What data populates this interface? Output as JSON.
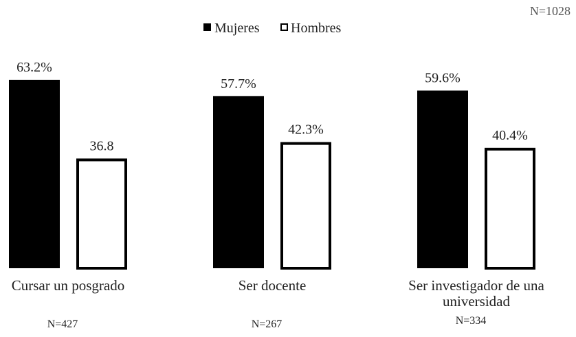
{
  "chart_data": {
    "type": "bar",
    "total_label": "N=1028",
    "categories": [
      "Cursar un posgrado",
      "Ser docente",
      "Ser investigador de una universidad"
    ],
    "category_lines": [
      [
        "Cursar un posgrado"
      ],
      [
        "Ser docente"
      ],
      [
        "Ser investigador de una",
        "universidad"
      ]
    ],
    "sample_sizes": [
      "N=427",
      "N=267",
      "N=334"
    ],
    "series": [
      {
        "name": "Mujeres",
        "color": "#000000",
        "fill": "solid",
        "values": [
          63.2,
          57.7,
          59.6
        ],
        "labels": [
          "63.2%",
          "57.7%",
          "59.6%"
        ]
      },
      {
        "name": "Hombres",
        "color": "#000000",
        "fill": "outline",
        "values": [
          36.8,
          42.3,
          40.4
        ],
        "labels": [
          "36.8",
          "42.3%",
          "40.4%"
        ]
      }
    ],
    "ylim": [
      0,
      63.2
    ],
    "grid": false,
    "legend_position": "top-center",
    "xlabel": "",
    "ylabel": ""
  }
}
